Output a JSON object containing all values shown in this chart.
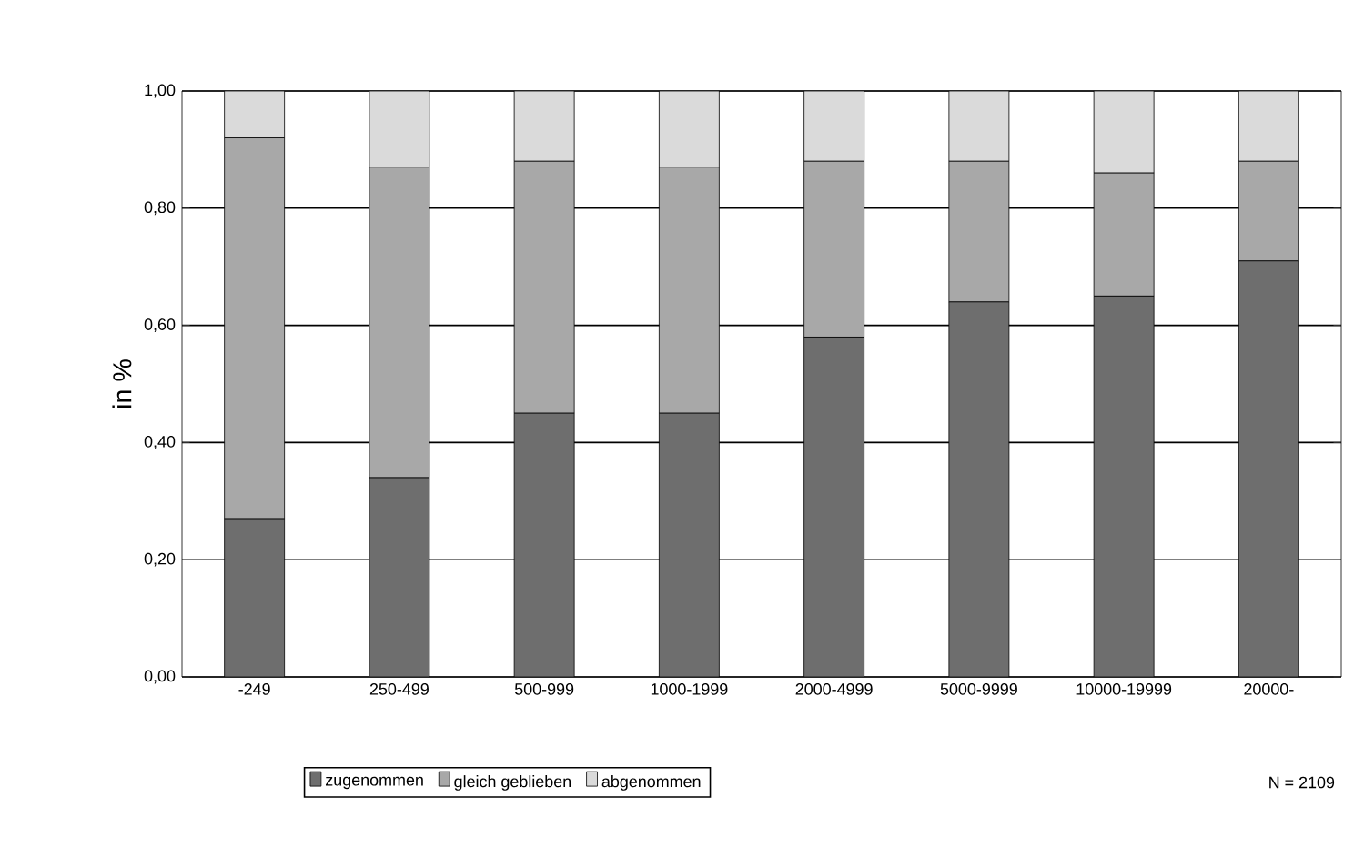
{
  "chart_data": {
    "type": "bar",
    "stacked": true,
    "ylabel": "in %",
    "categories": [
      "-249",
      "250-499",
      "500-999",
      "1000-1999",
      "2000-4999",
      "5000-9999",
      "10000-19999",
      "20000-"
    ],
    "series": [
      {
        "name": "zugenommen",
        "color": "#6e6e6e",
        "values": [
          0.27,
          0.34,
          0.45,
          0.45,
          0.58,
          0.64,
          0.65,
          0.71
        ]
      },
      {
        "name": "gleich geblieben",
        "color": "#a8a8a8",
        "values": [
          0.65,
          0.53,
          0.43,
          0.42,
          0.3,
          0.24,
          0.21,
          0.17
        ]
      },
      {
        "name": "abgenommen",
        "color": "#dadada",
        "values": [
          0.08,
          0.13,
          0.12,
          0.13,
          0.12,
          0.12,
          0.14,
          0.12
        ]
      }
    ],
    "ylim": [
      0,
      1
    ],
    "yticks": [
      {
        "value": 0,
        "label": "0,00"
      },
      {
        "value": 0.2,
        "label": "0,20"
      },
      {
        "value": 0.4,
        "label": "0,40"
      },
      {
        "value": 0.6,
        "label": "0,60"
      },
      {
        "value": 0.8,
        "label": "0,80"
      },
      {
        "value": 1,
        "label": "1,00"
      }
    ],
    "grid": "y",
    "legend": "bottom left",
    "annotations": [
      "N = 2109"
    ]
  }
}
